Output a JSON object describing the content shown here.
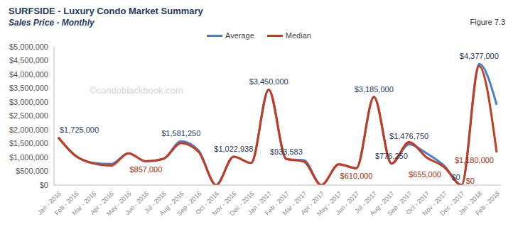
{
  "chart_data": {
    "type": "line",
    "title": "SURFSIDE - Luxury Condo Market Summary",
    "subtitle": "Sales Price - Monthly",
    "figure_label": "Figure 7.3",
    "annotations": [
      "©condoblackbook.com"
    ],
    "categories": [
      "Jan - 2016",
      "Feb - 2016",
      "Mar - 2016",
      "Apr - 2016",
      "May - 2016",
      "Jun - 2016",
      "Jul - 2016",
      "Aug - 2016",
      "Sep - 2016",
      "Oct - 2016",
      "Nov - 2016",
      "Dec - 2016",
      "Jan - 2017",
      "Feb - 2017",
      "Mar - 2017",
      "Apr - 2017",
      "May - 2017",
      "Jun - 2017",
      "Jul - 2017",
      "Aug - 2017",
      "Sep - 2017",
      "Oct - 2017",
      "Nov - 2017",
      "Dec - 2017",
      "Jan - 2018",
      "Feb - 2018"
    ],
    "series": [
      {
        "name": "Average",
        "color": "#4a7fd0",
        "line_style": "smooth",
        "marker": "none",
        "values": [
          1725000,
          1050000,
          800000,
          760000,
          1150000,
          857000,
          950000,
          1581250,
          1250000,
          0,
          1022938,
          800000,
          3450000,
          933583,
          900000,
          0,
          750000,
          610000,
          3185000,
          776250,
          1476750,
          1150000,
          700000,
          0,
          4377000,
          2900000
        ],
        "value_labels": [
          "$1,725,000",
          null,
          null,
          null,
          null,
          null,
          null,
          "$1,581,250",
          null,
          null,
          "$1,022,938",
          null,
          "$3,450,000",
          "$933,583",
          null,
          null,
          null,
          null,
          "$3,185,000",
          "$776,250",
          "$1,476,750",
          null,
          null,
          "$0",
          "$4,377,000",
          null
        ]
      },
      {
        "name": "Median",
        "color": "#c43b1d",
        "line_style": "smooth",
        "marker": "none",
        "values": [
          1725000,
          1050000,
          780000,
          700000,
          1150000,
          857000,
          950000,
          1520000,
          1200000,
          0,
          1022938,
          800000,
          3450000,
          950000,
          850000,
          0,
          750000,
          610000,
          3185000,
          776250,
          1550000,
          1000000,
          655000,
          0,
          4300000,
          1180000
        ],
        "value_labels": [
          null,
          null,
          null,
          null,
          null,
          "$857,000",
          null,
          null,
          null,
          null,
          null,
          null,
          null,
          null,
          null,
          null,
          null,
          "$610,000",
          null,
          null,
          null,
          null,
          "$655,000",
          "$0",
          null,
          "$1,180,000"
        ]
      }
    ],
    "ylim": [
      0,
      5000000
    ],
    "yticks": [
      {
        "value": 0,
        "label": "$0"
      },
      {
        "value": 500000,
        "label": "$500,000"
      },
      {
        "value": 1000000,
        "label": "$1,000,000"
      },
      {
        "value": 1500000,
        "label": "$1,500,000"
      },
      {
        "value": 2000000,
        "label": "$2,000,000"
      },
      {
        "value": 2500000,
        "label": "$2,500,000"
      },
      {
        "value": 3000000,
        "label": "$3,000,000"
      },
      {
        "value": 3500000,
        "label": "$3,500,000"
      },
      {
        "value": 4000000,
        "label": "$4,000,000"
      },
      {
        "value": 4500000,
        "label": "$4,500,000"
      },
      {
        "value": 5000000,
        "label": "$5,000,000"
      }
    ],
    "grid": false,
    "legend": "top",
    "data_labels": true
  }
}
